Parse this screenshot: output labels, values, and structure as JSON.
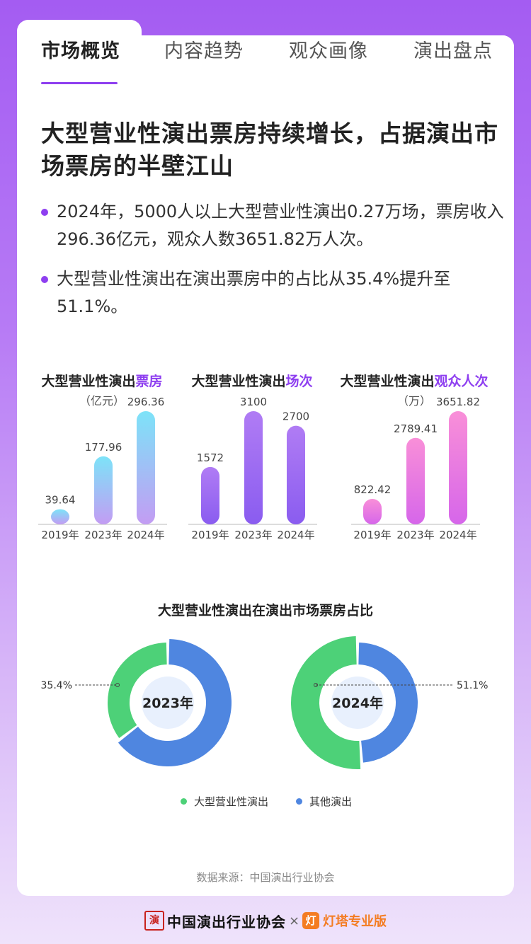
{
  "tabs": [
    {
      "label": "市场概览"
    },
    {
      "label": "内容趋势"
    },
    {
      "label": "观众画像"
    },
    {
      "label": "演出盘点"
    }
  ],
  "headline": "大型营业性演出票房持续增长，占据演出市场票房的半壁江山",
  "bullets": [
    "2024年，5000人以上大型营业性演出0.27万场，票房收入296.36亿元，观众人数3651.82万人次。",
    "大型营业性演出在演出票房中的占比从35.4%提升至51.1%。"
  ],
  "colors": {
    "accent": "#8e3ff0",
    "green": "#4dd178",
    "blue": "#4f86e0"
  },
  "chart_data": [
    {
      "type": "bar",
      "title_prefix": "大型营业性演出",
      "title_highlight": "票房",
      "unit": "（亿元）",
      "categories": [
        "2019年",
        "2023年",
        "2024年"
      ],
      "values": [
        39.64,
        177.96,
        296.36
      ],
      "value_labels": [
        "39.64",
        "177.96",
        "296.36"
      ],
      "gradient": [
        "#7de3f8",
        "#c39cf3"
      ]
    },
    {
      "type": "bar",
      "title_prefix": "大型营业性演出",
      "title_highlight": "场次",
      "unit": "",
      "categories": [
        "2019年",
        "2023年",
        "2024年"
      ],
      "values": [
        1572,
        3100,
        2700
      ],
      "value_labels": [
        "1572",
        "3100",
        "2700"
      ],
      "gradient": [
        "#b07cf4",
        "#8a5cf0"
      ]
    },
    {
      "type": "bar",
      "title_prefix": "大型营业性演出",
      "title_highlight": "观众人次",
      "unit": "（万）",
      "categories": [
        "2019年",
        "2023年",
        "2024年"
      ],
      "values": [
        822.42,
        2789.41,
        3651.82
      ],
      "value_labels": [
        "822.42",
        "2789.41",
        "3651.82"
      ],
      "gradient": [
        "#f98fd8",
        "#d666ea"
      ]
    },
    {
      "type": "pie",
      "title": "大型营业性演出在演出市场票房占比",
      "charts": [
        {
          "center_label": "2023年",
          "slices": [
            {
              "name": "大型营业性演出",
              "value": 35.4,
              "label": "35.4%"
            },
            {
              "name": "其他演出",
              "value": 64.6
            }
          ]
        },
        {
          "center_label": "2024年",
          "slices": [
            {
              "name": "大型营业性演出",
              "value": 51.1,
              "label": "51.1%"
            },
            {
              "name": "其他演出",
              "value": 48.9
            }
          ]
        }
      ],
      "legend": [
        "大型营业性演出",
        "其他演出"
      ]
    }
  ],
  "source": "数据来源：中国演出行业协会",
  "logos": {
    "association": "中国演出行业协会",
    "separator": "×",
    "partner": "灯塔专业版"
  }
}
